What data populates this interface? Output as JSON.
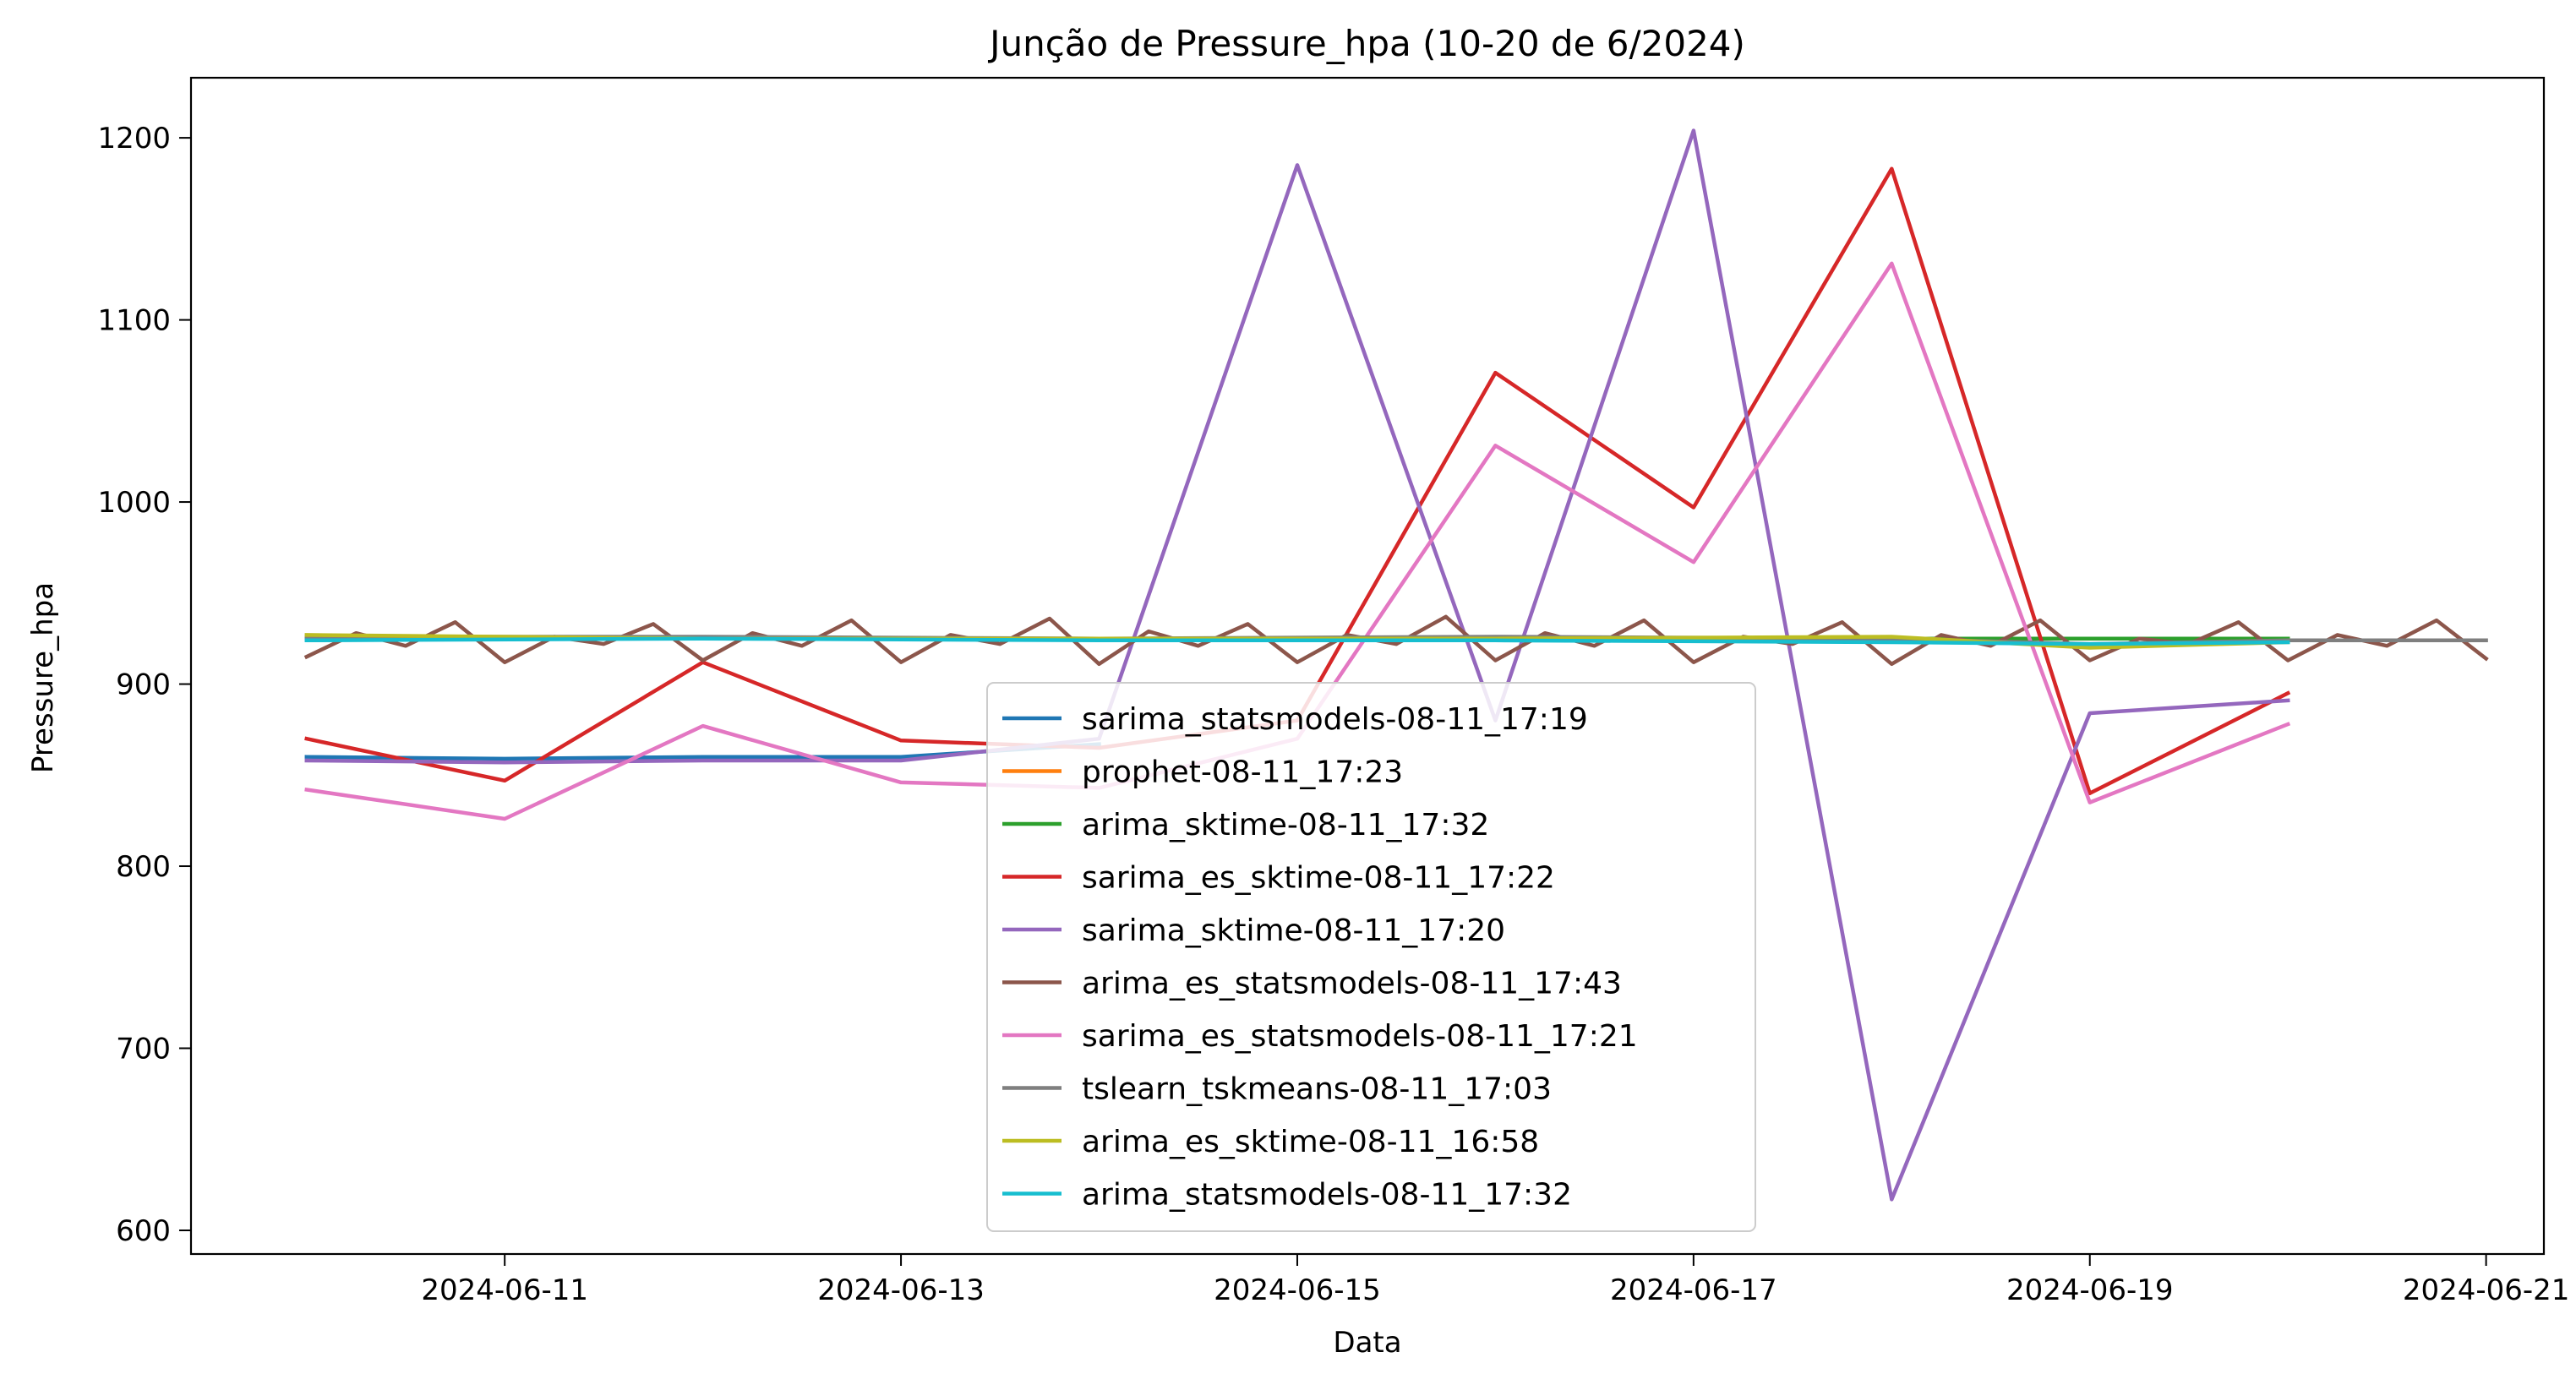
{
  "chart_data": {
    "type": "line",
    "title": "Junção de Pressure_hpa (10-20 de 6/2024)",
    "xlabel": "Data",
    "ylabel": "Pressure_hpa",
    "xlim": [
      "2024-06-09T10:00",
      "2024-06-21T07:00"
    ],
    "ylim": [
      587,
      1233
    ],
    "x_ticks": [
      "2024-06-11",
      "2024-06-13",
      "2024-06-15",
      "2024-06-17",
      "2024-06-19",
      "2024-06-21"
    ],
    "y_ticks": [
      600,
      700,
      800,
      900,
      1000,
      1100,
      1200
    ],
    "grid": false,
    "legend_position": "lower-center",
    "series": [
      {
        "name": "sarima_statsmodels-08-11_17:19",
        "color": "#1f77b4",
        "x": [
          "2024-06-10",
          "2024-06-11",
          "2024-06-12",
          "2024-06-13",
          "2024-06-14"
        ],
        "y": [
          860,
          859,
          860,
          860,
          867
        ]
      },
      {
        "name": "prophet-08-11_17:23",
        "color": "#ff7f0e",
        "x": [
          "2024-06-10",
          "2024-06-20"
        ],
        "y": [
          925,
          925
        ]
      },
      {
        "name": "arima_sktime-08-11_17:32",
        "color": "#2ca02c",
        "x": [
          "2024-06-10",
          "2024-06-20"
        ],
        "y": [
          925,
          925
        ]
      },
      {
        "name": "sarima_es_sktime-08-11_17:22",
        "color": "#d62728",
        "x": [
          "2024-06-10",
          "2024-06-11",
          "2024-06-12",
          "2024-06-13",
          "2024-06-14",
          "2024-06-15",
          "2024-06-16",
          "2024-06-17",
          "2024-06-18",
          "2024-06-19",
          "2024-06-20"
        ],
        "y": [
          870,
          847,
          912,
          869,
          865,
          880,
          1071,
          997,
          1183,
          840,
          895
        ]
      },
      {
        "name": "sarima_sktime-08-11_17:20",
        "color": "#9467bd",
        "x": [
          "2024-06-10",
          "2024-06-11",
          "2024-06-12",
          "2024-06-13",
          "2024-06-14",
          "2024-06-15",
          "2024-06-16",
          "2024-06-17",
          "2024-06-18",
          "2024-06-19",
          "2024-06-20"
        ],
        "y": [
          858,
          857,
          858,
          858,
          870,
          1185,
          880,
          1204,
          617,
          884,
          891
        ]
      },
      {
        "name": "arima_es_statsmodels-08-11_17:43",
        "color": "#8c564b",
        "x": [
          "2024-06-10",
          "2024-06-10T06:00",
          "2024-06-10T12:00",
          "2024-06-10T18:00",
          "2024-06-11",
          "2024-06-11T06:00",
          "2024-06-11T12:00",
          "2024-06-11T18:00",
          "2024-06-12",
          "2024-06-12T06:00",
          "2024-06-12T12:00",
          "2024-06-12T18:00",
          "2024-06-13",
          "2024-06-13T06:00",
          "2024-06-13T12:00",
          "2024-06-13T18:00",
          "2024-06-14",
          "2024-06-14T06:00",
          "2024-06-14T12:00",
          "2024-06-14T18:00",
          "2024-06-15",
          "2024-06-15T06:00",
          "2024-06-15T12:00",
          "2024-06-15T18:00",
          "2024-06-16",
          "2024-06-16T06:00",
          "2024-06-16T12:00",
          "2024-06-16T18:00",
          "2024-06-17",
          "2024-06-17T06:00",
          "2024-06-17T12:00",
          "2024-06-17T18:00",
          "2024-06-18",
          "2024-06-18T06:00",
          "2024-06-18T12:00",
          "2024-06-18T18:00",
          "2024-06-19",
          "2024-06-19T06:00",
          "2024-06-19T12:00",
          "2024-06-19T18:00",
          "2024-06-20",
          "2024-06-20T06:00",
          "2024-06-20T12:00",
          "2024-06-20T18:00",
          "2024-06-21"
        ],
        "y": [
          915,
          928,
          921,
          934,
          912,
          926,
          922,
          933,
          913,
          928,
          921,
          935,
          912,
          927,
          922,
          936,
          911,
          929,
          921,
          933,
          912,
          927,
          922,
          937,
          913,
          928,
          921,
          935,
          912,
          926,
          922,
          934,
          911,
          927,
          921,
          935,
          913,
          925,
          922,
          934,
          913,
          927,
          921,
          935,
          914
        ]
      },
      {
        "name": "sarima_es_statsmodels-08-11_17:21",
        "color": "#e377c2",
        "x": [
          "2024-06-10",
          "2024-06-11",
          "2024-06-12",
          "2024-06-13",
          "2024-06-14",
          "2024-06-15",
          "2024-06-16",
          "2024-06-17",
          "2024-06-18",
          "2024-06-19",
          "2024-06-20"
        ],
        "y": [
          842,
          826,
          877,
          846,
          843,
          870,
          1031,
          967,
          1131,
          835,
          878
        ]
      },
      {
        "name": "tslearn_tskmeans-08-11_17:03",
        "color": "#7f7f7f",
        "x": [
          "2024-06-10",
          "2024-06-12",
          "2024-06-14",
          "2024-06-16",
          "2024-06-18",
          "2024-06-19",
          "2024-06-20",
          "2024-06-21"
        ],
        "y": [
          926,
          926,
          925,
          926,
          925,
          922,
          924,
          924
        ]
      },
      {
        "name": "arima_es_sktime-08-11_16:58",
        "color": "#bcbd22",
        "x": [
          "2024-06-10",
          "2024-06-12",
          "2024-06-14",
          "2024-06-16",
          "2024-06-18",
          "2024-06-19",
          "2024-06-20"
        ],
        "y": [
          927,
          925,
          925,
          925,
          926,
          920,
          923
        ]
      },
      {
        "name": "arima_statsmodels-08-11_17:32",
        "color": "#17becf",
        "x": [
          "2024-06-10",
          "2024-06-12",
          "2024-06-14",
          "2024-06-16",
          "2024-06-18",
          "2024-06-19",
          "2024-06-20"
        ],
        "y": [
          924,
          925,
          924,
          924,
          923,
          922,
          923
        ]
      }
    ]
  }
}
